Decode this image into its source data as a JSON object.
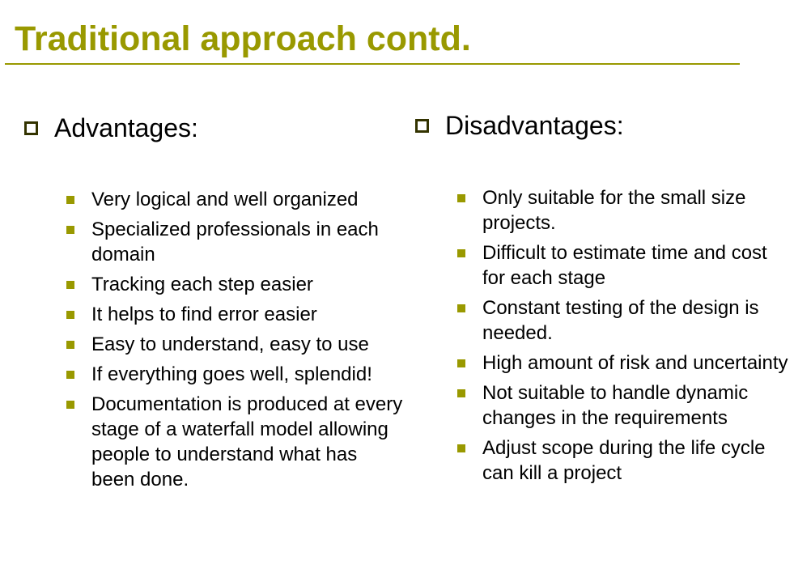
{
  "slide": {
    "title": "Traditional approach contd.",
    "accent_color": "#999900",
    "advantages": {
      "heading": "Advantages:",
      "items": [
        "Very logical and well organized",
        "Specialized professionals in each domain",
        "Tracking each step easier",
        "It helps to find error easier",
        "Easy to understand, easy to use",
        "If everything goes well, splendid!",
        "Documentation is produced at every stage of a waterfall model allowing people to understand what has been done."
      ]
    },
    "disadvantages": {
      "heading": "Disadvantages:",
      "items": [
        "Only suitable for the small size projects.",
        "Difficult to estimate time and cost for each stage",
        "Constant testing of the design is needed.",
        "High amount of risk and uncertainty",
        "Not suitable to handle dynamic changes in the requirements",
        "Adjust scope during the life cycle can kill a project"
      ]
    }
  }
}
